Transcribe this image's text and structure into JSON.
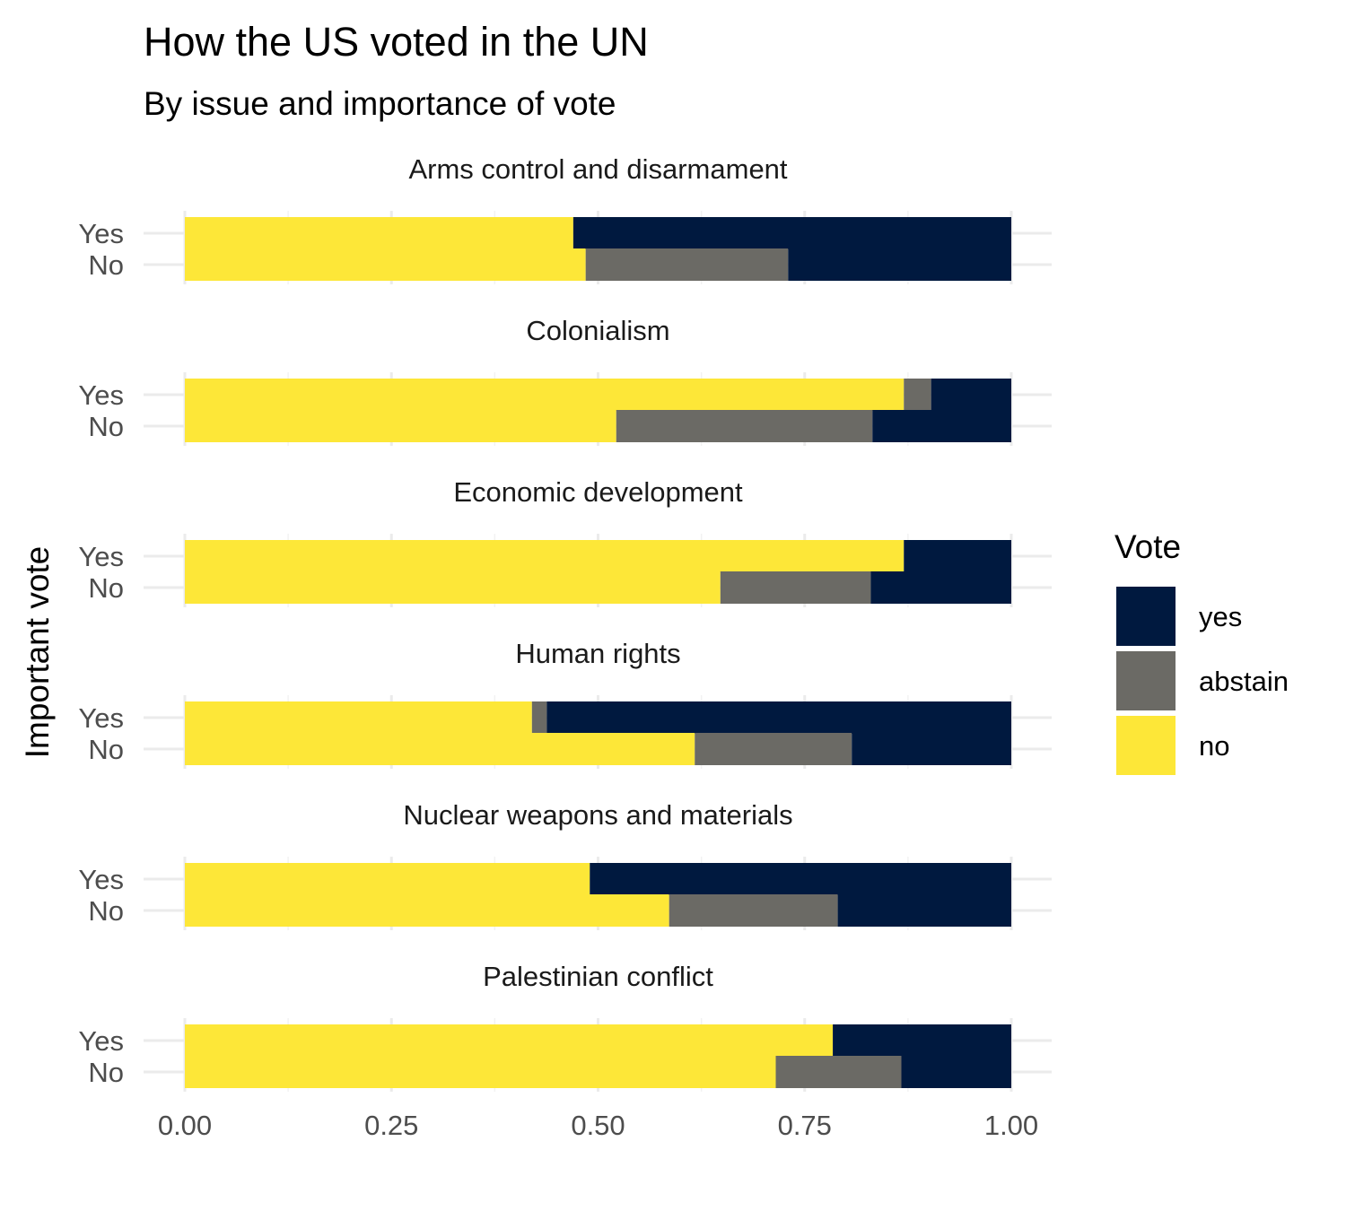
{
  "chart_data": {
    "type": "bar",
    "orientation": "horizontal",
    "stacked": true,
    "title": "How the US voted in the UN",
    "subtitle": "By issue and importance of vote",
    "ylabel": "Important vote",
    "xlabel": "",
    "xlim": [
      0,
      1
    ],
    "xticks": [
      "0.00",
      "0.25",
      "0.50",
      "0.75",
      "1.00"
    ],
    "xtick_values": [
      0,
      0.25,
      0.5,
      0.75,
      1
    ],
    "grid": true,
    "legend": {
      "title": "Vote",
      "position": "right",
      "items": [
        {
          "key": "yes",
          "label": "yes",
          "color": "#00193F"
        },
        {
          "key": "abstain",
          "label": "abstain",
          "color": "#6B6A65"
        },
        {
          "key": "no",
          "label": "no",
          "color": "#FDE738"
        }
      ]
    },
    "stack_order_left_to_right": [
      "no",
      "abstain",
      "yes"
    ],
    "row_labels": [
      "Yes",
      "No"
    ],
    "facets": [
      {
        "title": "Arms control and disarmament",
        "rows": [
          {
            "label": "Yes",
            "no": 0.47,
            "abstain": 0.0,
            "yes": 0.53
          },
          {
            "label": "No",
            "no": 0.485,
            "abstain": 0.245,
            "yes": 0.27
          }
        ]
      },
      {
        "title": "Colonialism",
        "rows": [
          {
            "label": "Yes",
            "no": 0.87,
            "abstain": 0.033,
            "yes": 0.097
          },
          {
            "label": "No",
            "no": 0.522,
            "abstain": 0.31,
            "yes": 0.168
          }
        ]
      },
      {
        "title": "Economic development",
        "rows": [
          {
            "label": "Yes",
            "no": 0.87,
            "abstain": 0.0,
            "yes": 0.13
          },
          {
            "label": "No",
            "no": 0.648,
            "abstain": 0.182,
            "yes": 0.17
          }
        ]
      },
      {
        "title": "Human rights",
        "rows": [
          {
            "label": "Yes",
            "no": 0.42,
            "abstain": 0.018,
            "yes": 0.562
          },
          {
            "label": "No",
            "no": 0.617,
            "abstain": 0.19,
            "yes": 0.193
          }
        ]
      },
      {
        "title": "Nuclear weapons and materials",
        "rows": [
          {
            "label": "Yes",
            "no": 0.49,
            "abstain": 0.0,
            "yes": 0.51
          },
          {
            "label": "No",
            "no": 0.586,
            "abstain": 0.204,
            "yes": 0.21
          }
        ]
      },
      {
        "title": "Palestinian conflict",
        "rows": [
          {
            "label": "Yes",
            "no": 0.784,
            "abstain": 0.0,
            "yes": 0.216
          },
          {
            "label": "No",
            "no": 0.715,
            "abstain": 0.152,
            "yes": 0.133
          }
        ]
      }
    ]
  }
}
